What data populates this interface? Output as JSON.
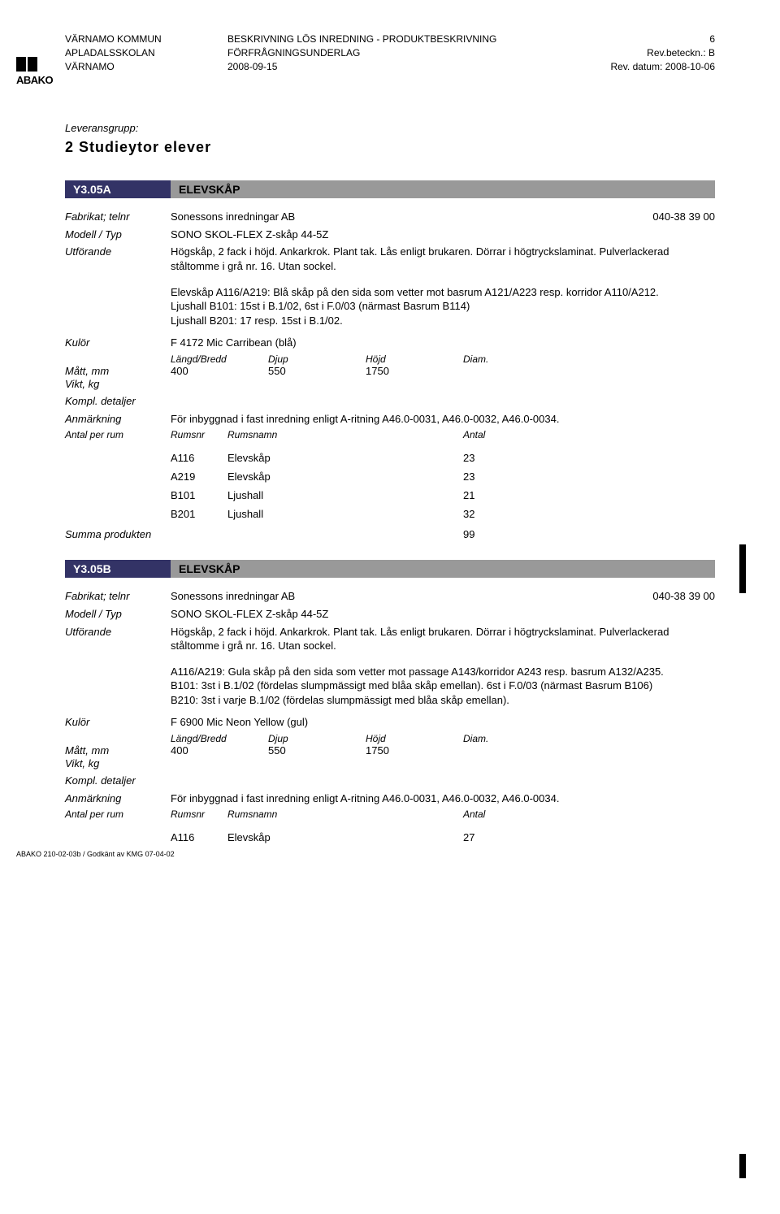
{
  "header": {
    "col1_line1": "VÄRNAMO KOMMUN",
    "col1_line2": "APLADALSSKOLAN",
    "col1_line3": "VÄRNAMO",
    "col2_line1": "BESKRIVNING LÖS INREDNING - PRODUKTBESKRIVNING",
    "col2_line2": "FÖRFRÅGNINGSUNDERLAG",
    "col2_line3": "2008-09-15",
    "page_num": "6",
    "col3_line2": "Rev.beteckn.: B",
    "col3_line3": "Rev. datum: 2008-10-06"
  },
  "leveransgrupp_label": "Leveransgrupp:",
  "section_title": "2  Studieytor elever",
  "labels": {
    "fabrikat": "Fabrikat; telnr",
    "modell": "Modell / Typ",
    "utforande": "Utförande",
    "kulor": "Kulör",
    "matt": "Mått, mm",
    "vikt": "Vikt, kg",
    "kompl": "Kompl. detaljer",
    "anmarkning": "Anmärkning",
    "antal_per_rum": "Antal per rum",
    "langd": "Längd/Bredd",
    "djup": "Djup",
    "hojd": "Höjd",
    "diam": "Diam.",
    "rumsnr": "Rumsnr",
    "rumsnamn": "Rumsnamn",
    "antal": "Antal",
    "summa": "Summa produkten"
  },
  "productA": {
    "code": "Y3.05A",
    "title": "ELEVSKÅP",
    "fabrikat": "Sonessons inredningar AB",
    "phone": "040-38 39 00",
    "modell": "SONO SKOL-FLEX Z-skåp 44-5Z",
    "utforande": "Högskåp, 2 fack i höjd. Ankarkrok. Plant tak. Lås enligt brukaren. Dörrar i högtryckslaminat. Pulverlackerad ståltomme i grå nr. 16. Utan sockel.",
    "desc": "Elevskåp A116/A219: Blå skåp på den sida som vetter mot basrum A121/A223 resp. korridor A110/A212.\nLjushall B101: 15st i B.1/02, 6st i F.0/03 (närmast Basrum B114)\nLjushall B201: 17 resp. 15st i B.1/02.",
    "kulor": "F 4172 Mic Carribean (blå)",
    "dim_l": "400",
    "dim_d": "550",
    "dim_h": "1750",
    "anmarkning": "För inbyggnad i fast inredning enligt A-ritning A46.0-0031, A46.0-0032, A46.0-0034.",
    "rooms": [
      {
        "nr": "A116",
        "namn": "Elevskåp",
        "antal": "23"
      },
      {
        "nr": "A219",
        "namn": "Elevskåp",
        "antal": "23"
      },
      {
        "nr": "B101",
        "namn": "Ljushall",
        "antal": "21"
      },
      {
        "nr": "B201",
        "namn": "Ljushall",
        "antal": "32"
      }
    ],
    "summa": "99"
  },
  "productB": {
    "code": "Y3.05B",
    "title": "ELEVSKÅP",
    "fabrikat": "Sonessons inredningar AB",
    "phone": "040-38 39 00",
    "modell": "SONO SKOL-FLEX Z-skåp 44-5Z",
    "utforande": "Högskåp, 2 fack i höjd. Ankarkrok. Plant tak. Lås enligt brukaren. Dörrar i högtryckslaminat. Pulverlackerad ståltomme i grå nr. 16. Utan sockel.",
    "desc": "A116/A219: Gula skåp på den sida som vetter mot passage A143/korridor A243 resp. basrum A132/A235.\nB101: 3st i B.1/02 (fördelas slumpmässigt med blåa skåp emellan). 6st i F.0/03 (närmast Basrum B106)\nB210: 3st i varje B.1/02 (fördelas slumpmässigt med blåa skåp emellan).",
    "kulor": "F 6900 Mic Neon Yellow (gul)",
    "dim_l": "400",
    "dim_d": "550",
    "dim_h": "1750",
    "anmarkning": "För inbyggnad i fast inredning enligt A-ritning A46.0-0031, A46.0-0032, A46.0-0034.",
    "rooms": [
      {
        "nr": "A116",
        "namn": "Elevskåp",
        "antal": "27"
      }
    ]
  },
  "footer": "ABAKO 210-02-03b / Godkänt av KMG 07-04-02"
}
